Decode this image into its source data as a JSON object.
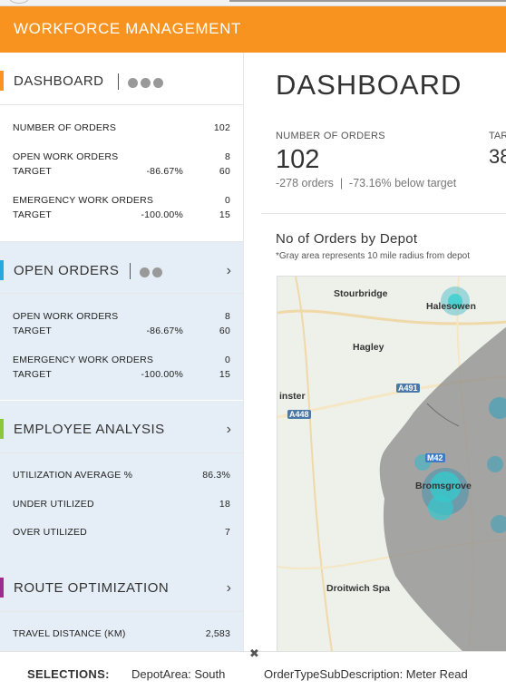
{
  "app": {
    "title": "WORKFORCE MANAGEMENT"
  },
  "sidebar": {
    "dashboard": {
      "label": "DASHBOARD",
      "accent": "#f7931e",
      "rows": [
        {
          "key": "NUMBER OF ORDERS",
          "value": "102"
        },
        {
          "key": "OPEN WORK ORDERS",
          "value": "8"
        },
        {
          "key": "TARGET",
          "pct": "-86.67%",
          "value": "60"
        },
        {
          "key": "EMERGENCY WORK ORDERS",
          "value": "0"
        },
        {
          "key": "TARGET",
          "pct": "-100.00%",
          "value": "15"
        }
      ]
    },
    "open_orders": {
      "label": "OPEN ORDERS",
      "accent": "#29a8e0",
      "rows": [
        {
          "key": "OPEN WORK ORDERS",
          "value": "8"
        },
        {
          "key": "TARGET",
          "pct": "-86.67%",
          "value": "60"
        },
        {
          "key": "EMERGENCY WORK ORDERS",
          "value": "0"
        },
        {
          "key": "TARGET",
          "pct": "-100.00%",
          "value": "15"
        }
      ]
    },
    "employee_analysis": {
      "label": "EMPLOYEE ANALYSIS",
      "accent": "#8cc63f",
      "rows": [
        {
          "key": "UTILIZATION AVERAGE %",
          "value": "86.3%"
        },
        {
          "key": "UNDER UTILIZED",
          "value": "18"
        },
        {
          "key": "OVER UTILIZED",
          "value": "7"
        }
      ]
    },
    "route_optimization": {
      "label": "ROUTE OPTIMIZATION",
      "accent": "#9b2d8e",
      "rows": [
        {
          "key": "TRAVEL DISTANCE (KM)",
          "value": "2,583"
        }
      ]
    }
  },
  "main": {
    "title": "DASHBOARD",
    "kpi_orders": {
      "label": "NUMBER OF ORDERS",
      "value": "102",
      "sub": "-278 orders  |  -73.16% below target"
    },
    "kpi_target": {
      "label": "TAR",
      "value": "38"
    },
    "chart": {
      "title": "No of Orders by Depot",
      "note": "*Gray area represents 10 mile radius from depot"
    },
    "map": {
      "places": [
        "Stourbridge",
        "Halesowen",
        "Hagley",
        "inster",
        "Bromsgrove",
        "Droitwich Spa"
      ],
      "roads": [
        "A491",
        "A448",
        "M42"
      ]
    }
  },
  "selections": {
    "label": "SELECTIONS:",
    "items": [
      "DepotArea: South",
      "OrderTypeSubDescription: Meter Read"
    ]
  }
}
